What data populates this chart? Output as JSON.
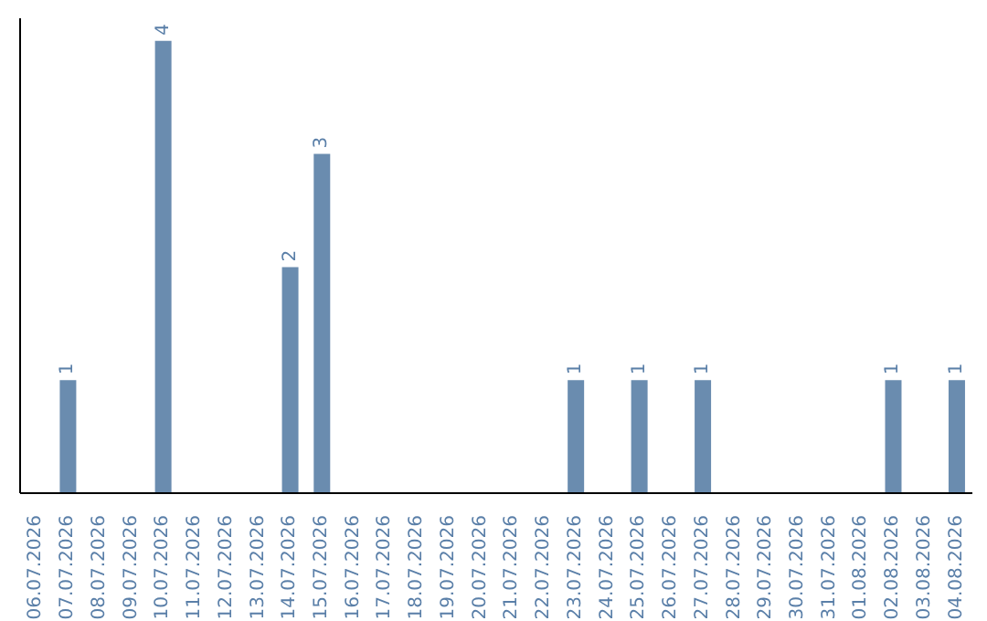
{
  "chart_data": {
    "type": "bar",
    "categories": [
      "06.07.2026",
      "07.07.2026",
      "08.07.2026",
      "09.07.2026",
      "10.07.2026",
      "11.07.2026",
      "12.07.2026",
      "13.07.2026",
      "14.07.2026",
      "15.07.2026",
      "16.07.2026",
      "17.07.2026",
      "18.07.2026",
      "19.07.2026",
      "20.07.2026",
      "21.07.2026",
      "22.07.2026",
      "23.07.2026",
      "24.07.2026",
      "25.07.2026",
      "26.07.2026",
      "27.07.2026",
      "28.07.2026",
      "29.07.2026",
      "30.07.2026",
      "31.07.2026",
      "01.08.2026",
      "02.08.2026",
      "03.08.2026",
      "04.08.2026"
    ],
    "values": [
      0,
      1,
      0,
      0,
      4,
      0,
      0,
      0,
      2,
      3,
      0,
      0,
      0,
      0,
      0,
      0,
      0,
      1,
      0,
      1,
      0,
      1,
      0,
      0,
      0,
      0,
      0,
      1,
      0,
      1
    ],
    "value_labels": [
      null,
      "1",
      null,
      null,
      "4",
      null,
      null,
      null,
      "2",
      "3",
      null,
      null,
      null,
      null,
      null,
      null,
      null,
      "1",
      null,
      "1",
      null,
      "1",
      null,
      null,
      null,
      null,
      null,
      "1",
      null,
      "1"
    ],
    "color": "#6a8caf",
    "tick_labels": "x",
    "grid": false,
    "legend": false
  }
}
